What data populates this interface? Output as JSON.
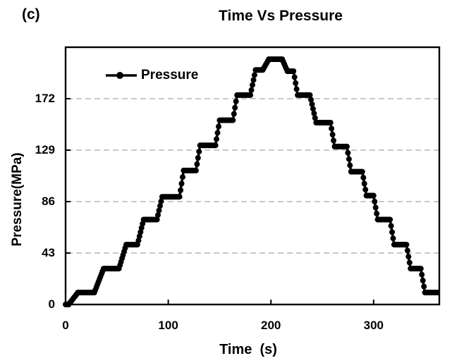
{
  "labels": {
    "panel": "(c)"
  },
  "colors": {
    "background": "#ffffff",
    "text": "#000000",
    "axis": "#000000",
    "gridline": "#c9c9c9",
    "series": "#000000"
  },
  "chart_data": {
    "type": "line",
    "title": "Time Vs Pressure",
    "xlabel": "Time  (s)",
    "ylabel": "Pressure(MPa)",
    "xlim": [
      0,
      364
    ],
    "ylim": [
      0,
      215
    ],
    "xticks": [
      0,
      100,
      200,
      300
    ],
    "yticks": [
      0,
      43,
      86,
      129,
      172
    ],
    "grid": "horizontal-dashed",
    "legend_position": "top-left-inside",
    "series": [
      {
        "name": "Pressure",
        "color": "#000000",
        "marker": "filled-circle",
        "marker_radius_px": 4,
        "sample_interval_s": 1,
        "points": [
          [
            0,
            0
          ],
          [
            3,
            0
          ],
          [
            12,
            10
          ],
          [
            28,
            10
          ],
          [
            37,
            30
          ],
          [
            52,
            30
          ],
          [
            59,
            50
          ],
          [
            70,
            50
          ],
          [
            76,
            71
          ],
          [
            89,
            71
          ],
          [
            94,
            90
          ],
          [
            111,
            90
          ],
          [
            115,
            112
          ],
          [
            127,
            112
          ],
          [
            131,
            133
          ],
          [
            146,
            133
          ],
          [
            150,
            154
          ],
          [
            163,
            154
          ],
          [
            167,
            175
          ],
          [
            180,
            175
          ],
          [
            185,
            196
          ],
          [
            192,
            196
          ],
          [
            198,
            205
          ],
          [
            211,
            205
          ],
          [
            216,
            195
          ],
          [
            222,
            195
          ],
          [
            226,
            175
          ],
          [
            238,
            175
          ],
          [
            244,
            152
          ],
          [
            258,
            152
          ],
          [
            262,
            132
          ],
          [
            274,
            132
          ],
          [
            278,
            111
          ],
          [
            289,
            111
          ],
          [
            293,
            91
          ],
          [
            300,
            91
          ],
          [
            304,
            71
          ],
          [
            316,
            71
          ],
          [
            320,
            50
          ],
          [
            332,
            50
          ],
          [
            336,
            30
          ],
          [
            346,
            30
          ],
          [
            350,
            10
          ],
          [
            362,
            10
          ]
        ]
      }
    ]
  }
}
